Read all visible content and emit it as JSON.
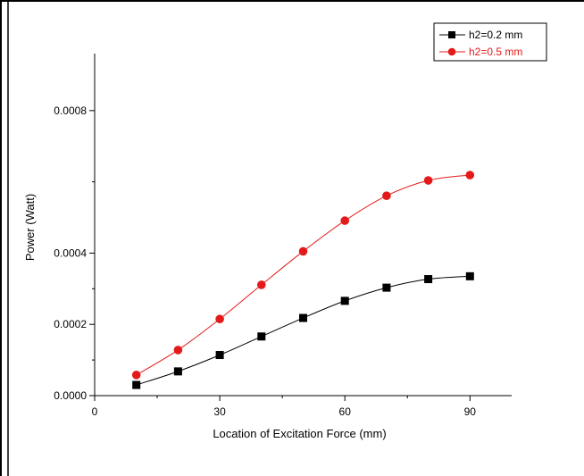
{
  "chart_data": {
    "type": "line",
    "title": "",
    "xlabel": "Location of Excitation Force (mm)",
    "ylabel": "Power (Watt)",
    "xlim": [
      0,
      100
    ],
    "ylim": [
      0,
      0.00096
    ],
    "xticks": [
      0,
      30,
      60,
      90
    ],
    "xtick_labels": [
      "0",
      "30",
      "60",
      "90"
    ],
    "yticks": [
      0,
      0.0002,
      0.0004,
      0.0008
    ],
    "ytick_labels": [
      "0.0000",
      "0.0002",
      "0.0004",
      "0.0008"
    ],
    "y_scale_note": "printed tick labels",
    "grid": false,
    "legend_position": "top-right",
    "x": [
      10,
      20,
      30,
      40,
      50,
      60,
      70,
      80,
      90
    ],
    "series": [
      {
        "name": "h2=0.2 mm",
        "color": "#000000",
        "marker": "square",
        "values": [
          3e-05,
          6.8e-05,
          0.000114,
          0.000166,
          0.000218,
          0.000266,
          0.000303,
          0.000327,
          0.000335
        ]
      },
      {
        "name": "h2=0.5 mm",
        "color": "#e41a1a",
        "marker": "circle",
        "values": [
          5.8e-05,
          0.000128,
          0.000215,
          0.000311,
          0.000405,
          0.000491,
          0.000561,
          0.000604,
          0.000619
        ]
      }
    ]
  }
}
